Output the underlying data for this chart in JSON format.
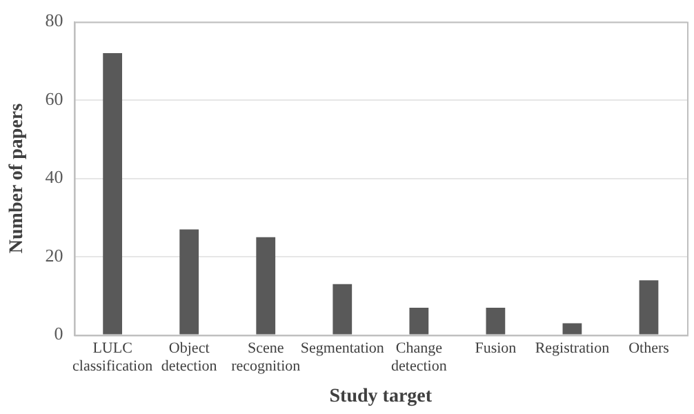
{
  "chart_data": {
    "type": "bar",
    "xlabel": "Study target",
    "ylabel": "Number of papers",
    "categories": [
      "LULC classification",
      "Object detection",
      "Scene recognition",
      "Segmentation",
      "Change detection",
      "Fusion",
      "Registration",
      "Others"
    ],
    "values": [
      72,
      27,
      25,
      13,
      7,
      7,
      3,
      14
    ],
    "color": "#595959",
    "ylim": [
      0,
      80
    ],
    "yticks": [
      0,
      20,
      40,
      60,
      80
    ],
    "grid": "y"
  }
}
